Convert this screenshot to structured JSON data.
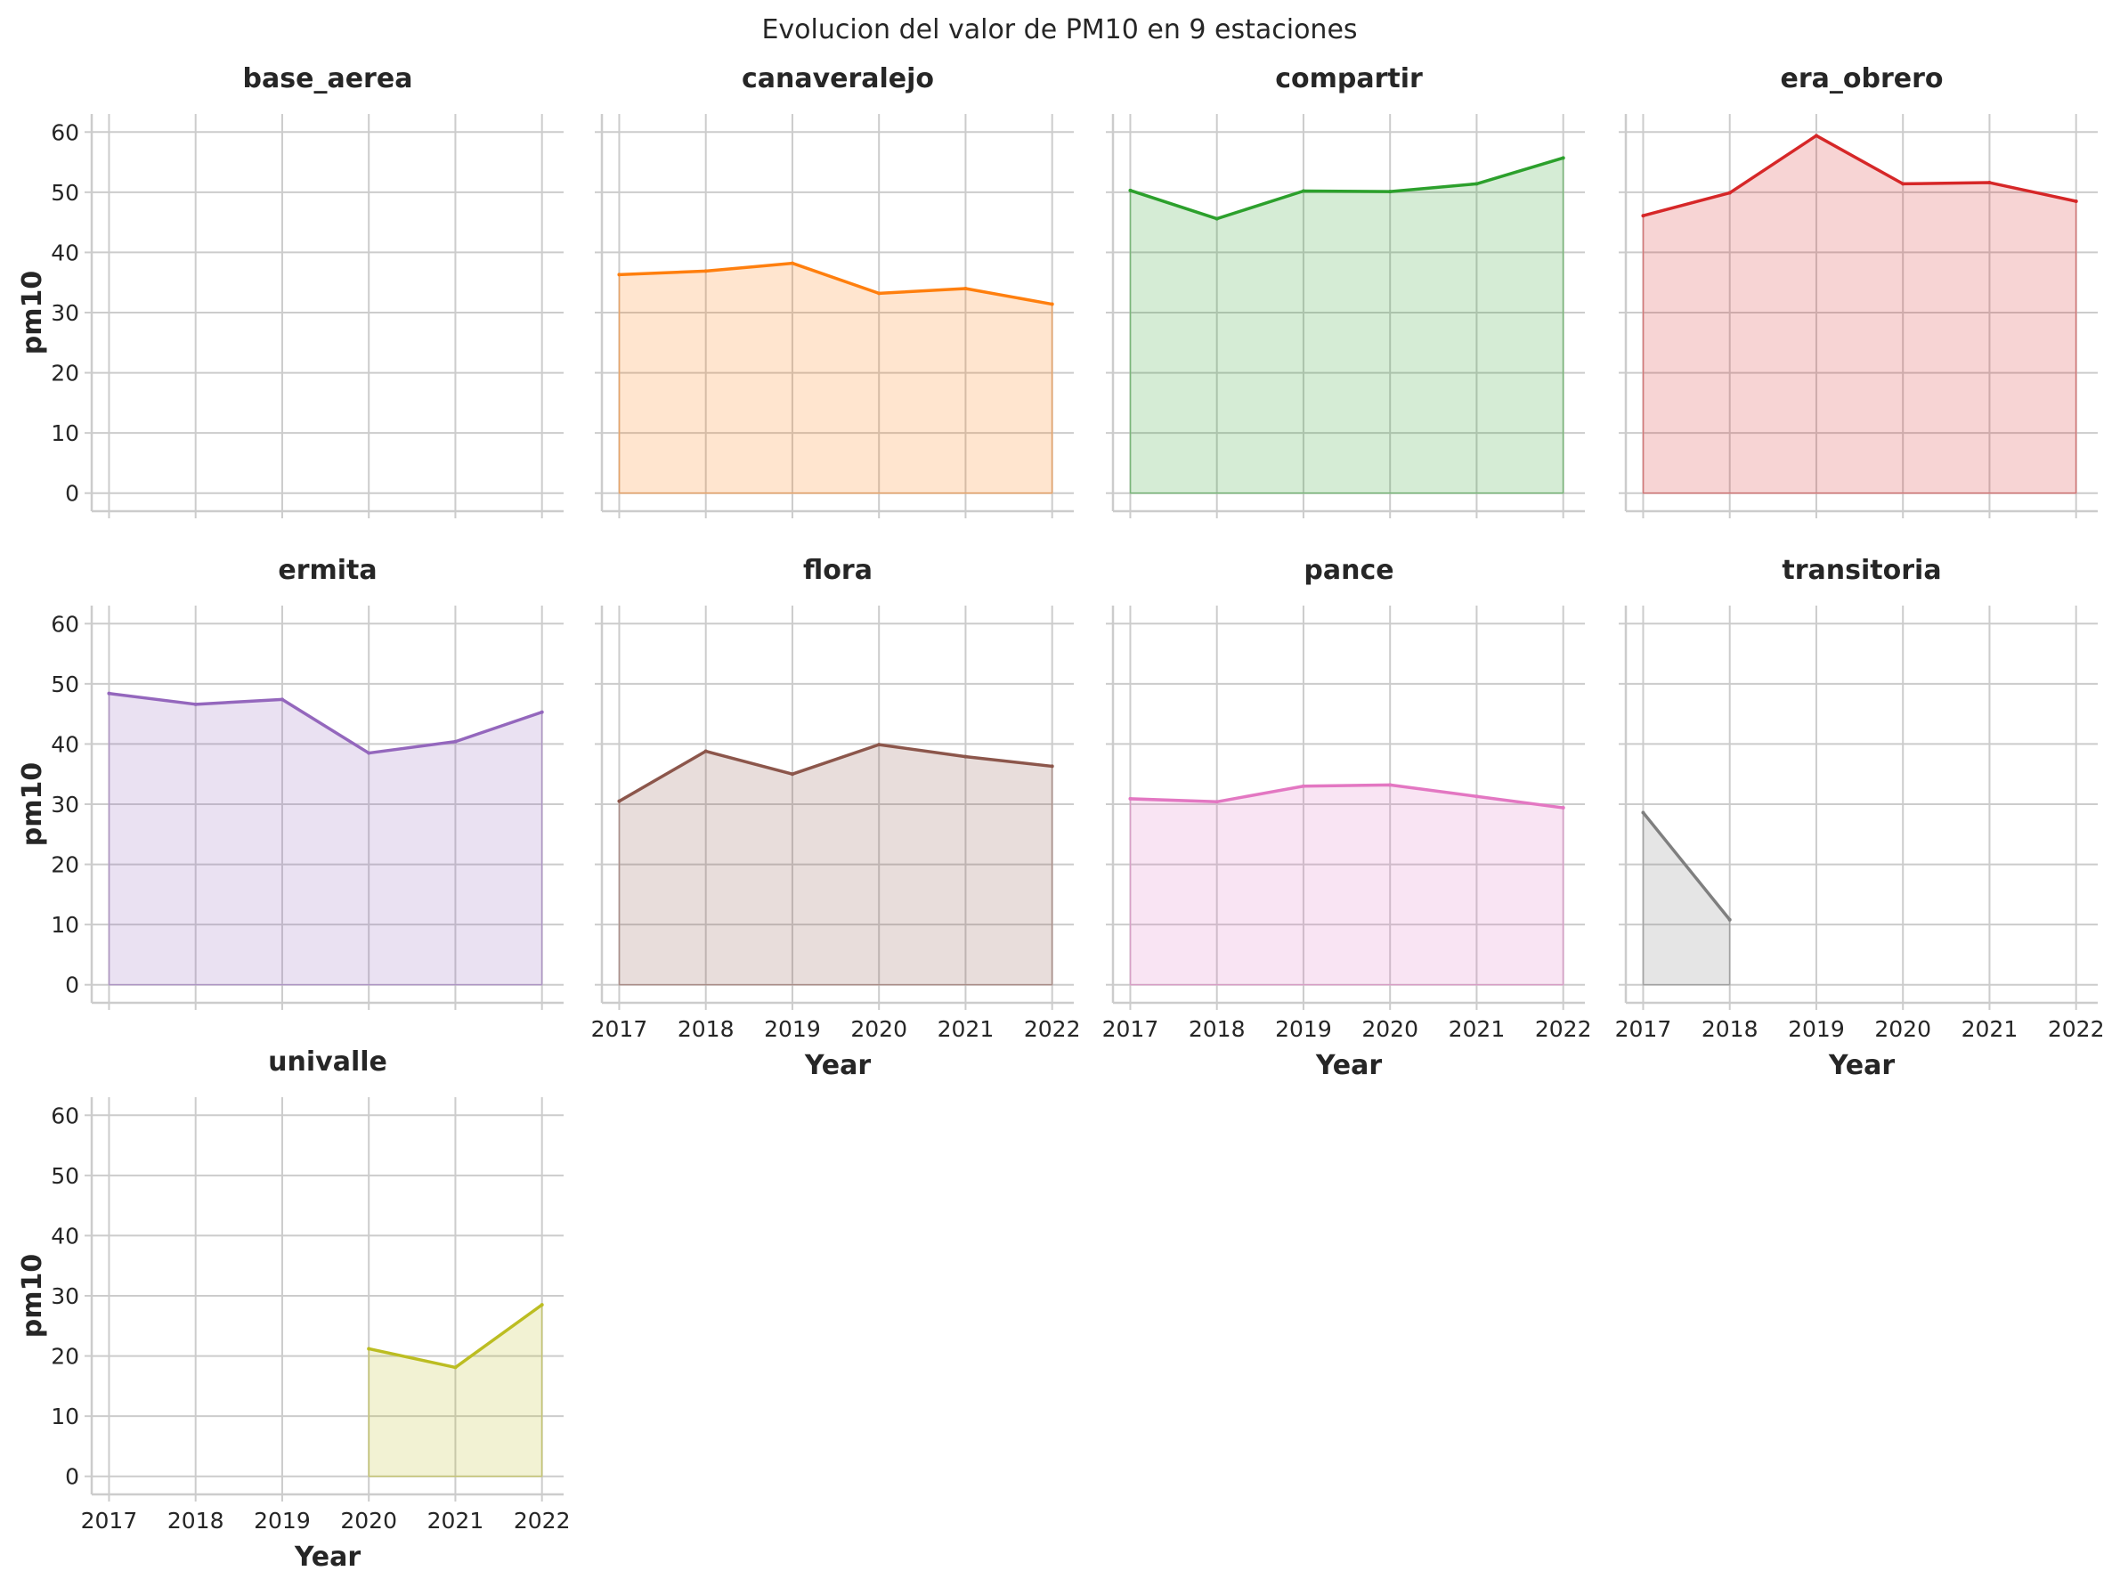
{
  "chart_data": {
    "type": "area",
    "title": "Evolucion del valor de PM10 en 9 estaciones",
    "xlabel": "Year",
    "ylabel": "pm10",
    "x": [
      2017,
      2018,
      2019,
      2020,
      2021,
      2022
    ],
    "xlim": [
      2016.8,
      2022.25
    ],
    "ylim": [
      -3,
      63
    ],
    "yticks": [
      0,
      10,
      20,
      30,
      40,
      50,
      60
    ],
    "grid": true,
    "layout": {
      "columns": 4,
      "rows": 3,
      "sharex": true,
      "sharey": true
    },
    "series": [
      {
        "name": "base_aerea",
        "color": "#1f77b4",
        "values": [
          null,
          null,
          null,
          null,
          null,
          null
        ]
      },
      {
        "name": "canaveralejo",
        "color": "#ff7f0e",
        "values": [
          36.3,
          36.9,
          38.2,
          33.2,
          34.0,
          31.4
        ]
      },
      {
        "name": "compartir",
        "color": "#2ca02c",
        "values": [
          50.3,
          45.6,
          50.2,
          50.1,
          51.4,
          55.7
        ]
      },
      {
        "name": "era_obrero",
        "color": "#d62728",
        "values": [
          46.1,
          49.9,
          59.4,
          51.4,
          51.6,
          48.5
        ]
      },
      {
        "name": "ermita",
        "color": "#9467bd",
        "values": [
          48.4,
          46.6,
          47.4,
          38.5,
          40.4,
          45.3
        ]
      },
      {
        "name": "flora",
        "color": "#8c564b",
        "values": [
          30.5,
          38.8,
          35.0,
          39.9,
          37.9,
          36.3
        ]
      },
      {
        "name": "pance",
        "color": "#e377c2",
        "values": [
          30.9,
          30.4,
          33.0,
          33.2,
          31.3,
          29.4
        ]
      },
      {
        "name": "transitoria",
        "color": "#7f7f7f",
        "values": [
          28.6,
          10.8,
          null,
          null,
          null,
          null
        ]
      },
      {
        "name": "univalle",
        "color": "#bcbd22",
        "values": [
          null,
          null,
          null,
          21.2,
          18.1,
          28.5
        ]
      }
    ]
  }
}
